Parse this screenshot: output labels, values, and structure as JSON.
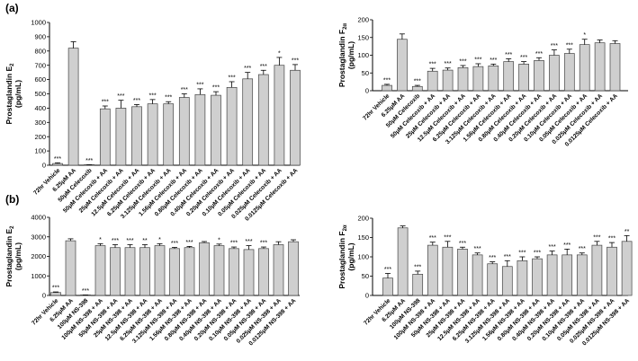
{
  "figure": {
    "label_a": "(a)",
    "label_b": "(b)"
  },
  "chart_data": [
    {
      "id": "a-left",
      "type": "bar",
      "ylabel": "Prostaglandin E2 (pg/mL)",
      "ylabel_main": "Prostaglandin E",
      "ylabel_sub": "2",
      "ylabel_units": "(pg/mL)",
      "ylim": [
        0,
        1000
      ],
      "yticks": [
        "0",
        "100",
        "200",
        "300",
        "400",
        "500",
        "600",
        "700",
        "800",
        "900",
        "1000"
      ],
      "ytick_values": [
        0,
        100,
        200,
        300,
        400,
        500,
        600,
        700,
        800,
        900,
        1000
      ],
      "categories": [
        "72hr Vehicle",
        "6.25μM AA",
        "50μM Celecoxib",
        "50μM Celecoxib + AA",
        "25μM Celecoxib + AA",
        "12.5μM Celecoxib + AA",
        "6.25μM Celecoxib + AA",
        "3.125μM Celecoxib + AA",
        "1.56μM Celecoxib + AA",
        "0.80μM Celecoxib + AA",
        "0.40μM Celecoxib + AA",
        "0.20μM Celecoxib + AA",
        "0.10μM Celecoxib + AA",
        "0.05μM Celecoxib + AA",
        "0.025μM Celecoxib + AA",
        "0.0125μM Celecoxib + AA"
      ],
      "values": [
        12,
        820,
        2,
        395,
        400,
        410,
        430,
        430,
        475,
        495,
        490,
        545,
        605,
        635,
        700,
        665
      ],
      "errors": [
        5,
        45,
        2,
        20,
        55,
        15,
        30,
        15,
        25,
        40,
        25,
        40,
        45,
        30,
        55,
        40
      ],
      "significance": [
        "***",
        "",
        "***",
        "***",
        "***",
        "***",
        "***",
        "***",
        "***",
        "***",
        "***",
        "***",
        "***",
        "***",
        "*",
        "***"
      ]
    },
    {
      "id": "a-right",
      "type": "bar",
      "ylabel": "Prostaglandin F2α (pg/mL)",
      "ylabel_main": "Prostaglandin F",
      "ylabel_sub": "2α",
      "ylabel_units": "(pg/mL)",
      "ylim": [
        0,
        200
      ],
      "yticks": [
        "0",
        "50",
        "100",
        "150",
        "200"
      ],
      "ytick_values": [
        0,
        50,
        100,
        150,
        200
      ],
      "categories": [
        "72hr Vehicle",
        "6.25μM AA",
        "50μM Celecoxib",
        "50μM Celecoxib + AA",
        "25μM Celecoxib + AA",
        "12.5μM Celecoxib + AA",
        "6.25μM Celecoxib + AA",
        "3.125μM Celecoxib + AA",
        "1.56μM Celecoxib + AA",
        "0.80μM Celecoxib + AA",
        "0.40μM Celecoxib + AA",
        "0.20μM Celecoxib + AA",
        "0.10μM Celecoxib + AA",
        "0.05μM Celecoxib + AA",
        "0.025μM Celecoxib + AA",
        "0.0125μM Celecoxib + AA"
      ],
      "values": [
        15,
        145,
        12,
        55,
        58,
        65,
        68,
        70,
        82,
        75,
        85,
        100,
        105,
        130,
        135,
        133
      ],
      "errors": [
        3,
        15,
        3,
        8,
        6,
        6,
        8,
        5,
        8,
        7,
        8,
        15,
        12,
        15,
        8,
        8
      ],
      "significance": [
        "***",
        "",
        "***",
        "***",
        "***",
        "***",
        "***",
        "***",
        "***",
        "***",
        "***",
        "***",
        "***",
        "*",
        "",
        ""
      ]
    },
    {
      "id": "b-left",
      "type": "bar",
      "ylabel": "Prostaglandin E2 (pg/mL)",
      "ylabel_main": "Prostaglandin E",
      "ylabel_sub": "2",
      "ylabel_units": "(pg/mL)",
      "ylim": [
        0,
        4000
      ],
      "yticks": [
        "0",
        "1000",
        "2000",
        "3000",
        "4000"
      ],
      "ytick_values": [
        0,
        1000,
        2000,
        3000,
        4000
      ],
      "categories": [
        "72hr Vehicle",
        "6.25μM AA",
        "100μM NS-398",
        "100μM NS-398 + AA",
        "50μM NS-398 + AA",
        "25μM NS-398 + AA",
        "12.5μM NS-398 + AA",
        "6.25μM NS-398 + AA",
        "3.125μM NS-398 + AA",
        "1.56μM NS-398 + AA",
        "0.80μM NS-398 + AA",
        "0.40μM NS-398 + AA",
        "0.20μM NS-398 + AA",
        "0.10μM NS-398 + AA",
        "0.05μM NS-398 + AA",
        "0.025μM NS-398 + AA",
        "0.0125μM NS-398 + AA"
      ],
      "values": [
        150,
        2800,
        10,
        2550,
        2450,
        2450,
        2450,
        2550,
        2400,
        2450,
        2700,
        2550,
        2400,
        2350,
        2400,
        2600,
        2750
      ],
      "errors": [
        30,
        100,
        10,
        100,
        150,
        150,
        150,
        100,
        60,
        60,
        60,
        80,
        80,
        200,
        80,
        150,
        100
      ],
      "significance": [
        "***",
        "",
        "***",
        "*",
        "***",
        "***",
        "**",
        "*",
        "***",
        "***",
        "",
        "*",
        "***",
        "***",
        "***",
        "",
        ""
      ]
    },
    {
      "id": "b-right",
      "type": "bar",
      "ylabel": "Prostaglandin F2α (pg/mL)",
      "ylabel_main": "Prostaglandin F",
      "ylabel_sub": "2α",
      "ylabel_units": "(pg/mL)",
      "ylim": [
        0,
        200
      ],
      "yticks": [
        "0",
        "50",
        "100",
        "150",
        "200"
      ],
      "ytick_values": [
        0,
        50,
        100,
        150,
        200
      ],
      "categories": [
        "72hr Vehicle",
        "6.25μM AA",
        "100μM NS-398",
        "100μM NS-398 + AA",
        "50μM NS-398 + AA",
        "25μM NS-398 + AA",
        "12.5μM NS-398 + AA",
        "6.25μM NS-398 + AA",
        "3.125μM NS-398 + AA",
        "1.56μM NS-398 + AA",
        "0.80μM NS-398 + AA",
        "0.40μM NS-398 + AA",
        "0.20μM NS-398 + AA",
        "0.10μM NS-398 + AA",
        "0.05μM NS-398 + AA",
        "0.025μM NS-398 + AA",
        "0.0125μM NS-398 + AA"
      ],
      "values": [
        45,
        175,
        55,
        130,
        125,
        120,
        105,
        82,
        75,
        90,
        95,
        105,
        105,
        105,
        130,
        125,
        140
      ],
      "errors": [
        12,
        5,
        8,
        8,
        15,
        5,
        5,
        5,
        15,
        10,
        5,
        10,
        15,
        5,
        10,
        12,
        15
      ],
      "significance": [
        "***",
        "",
        "***",
        "***",
        "***",
        "***",
        "***",
        "***",
        "***",
        "***",
        "***",
        "***",
        "***",
        "***",
        "***",
        "***",
        "**"
      ]
    }
  ]
}
